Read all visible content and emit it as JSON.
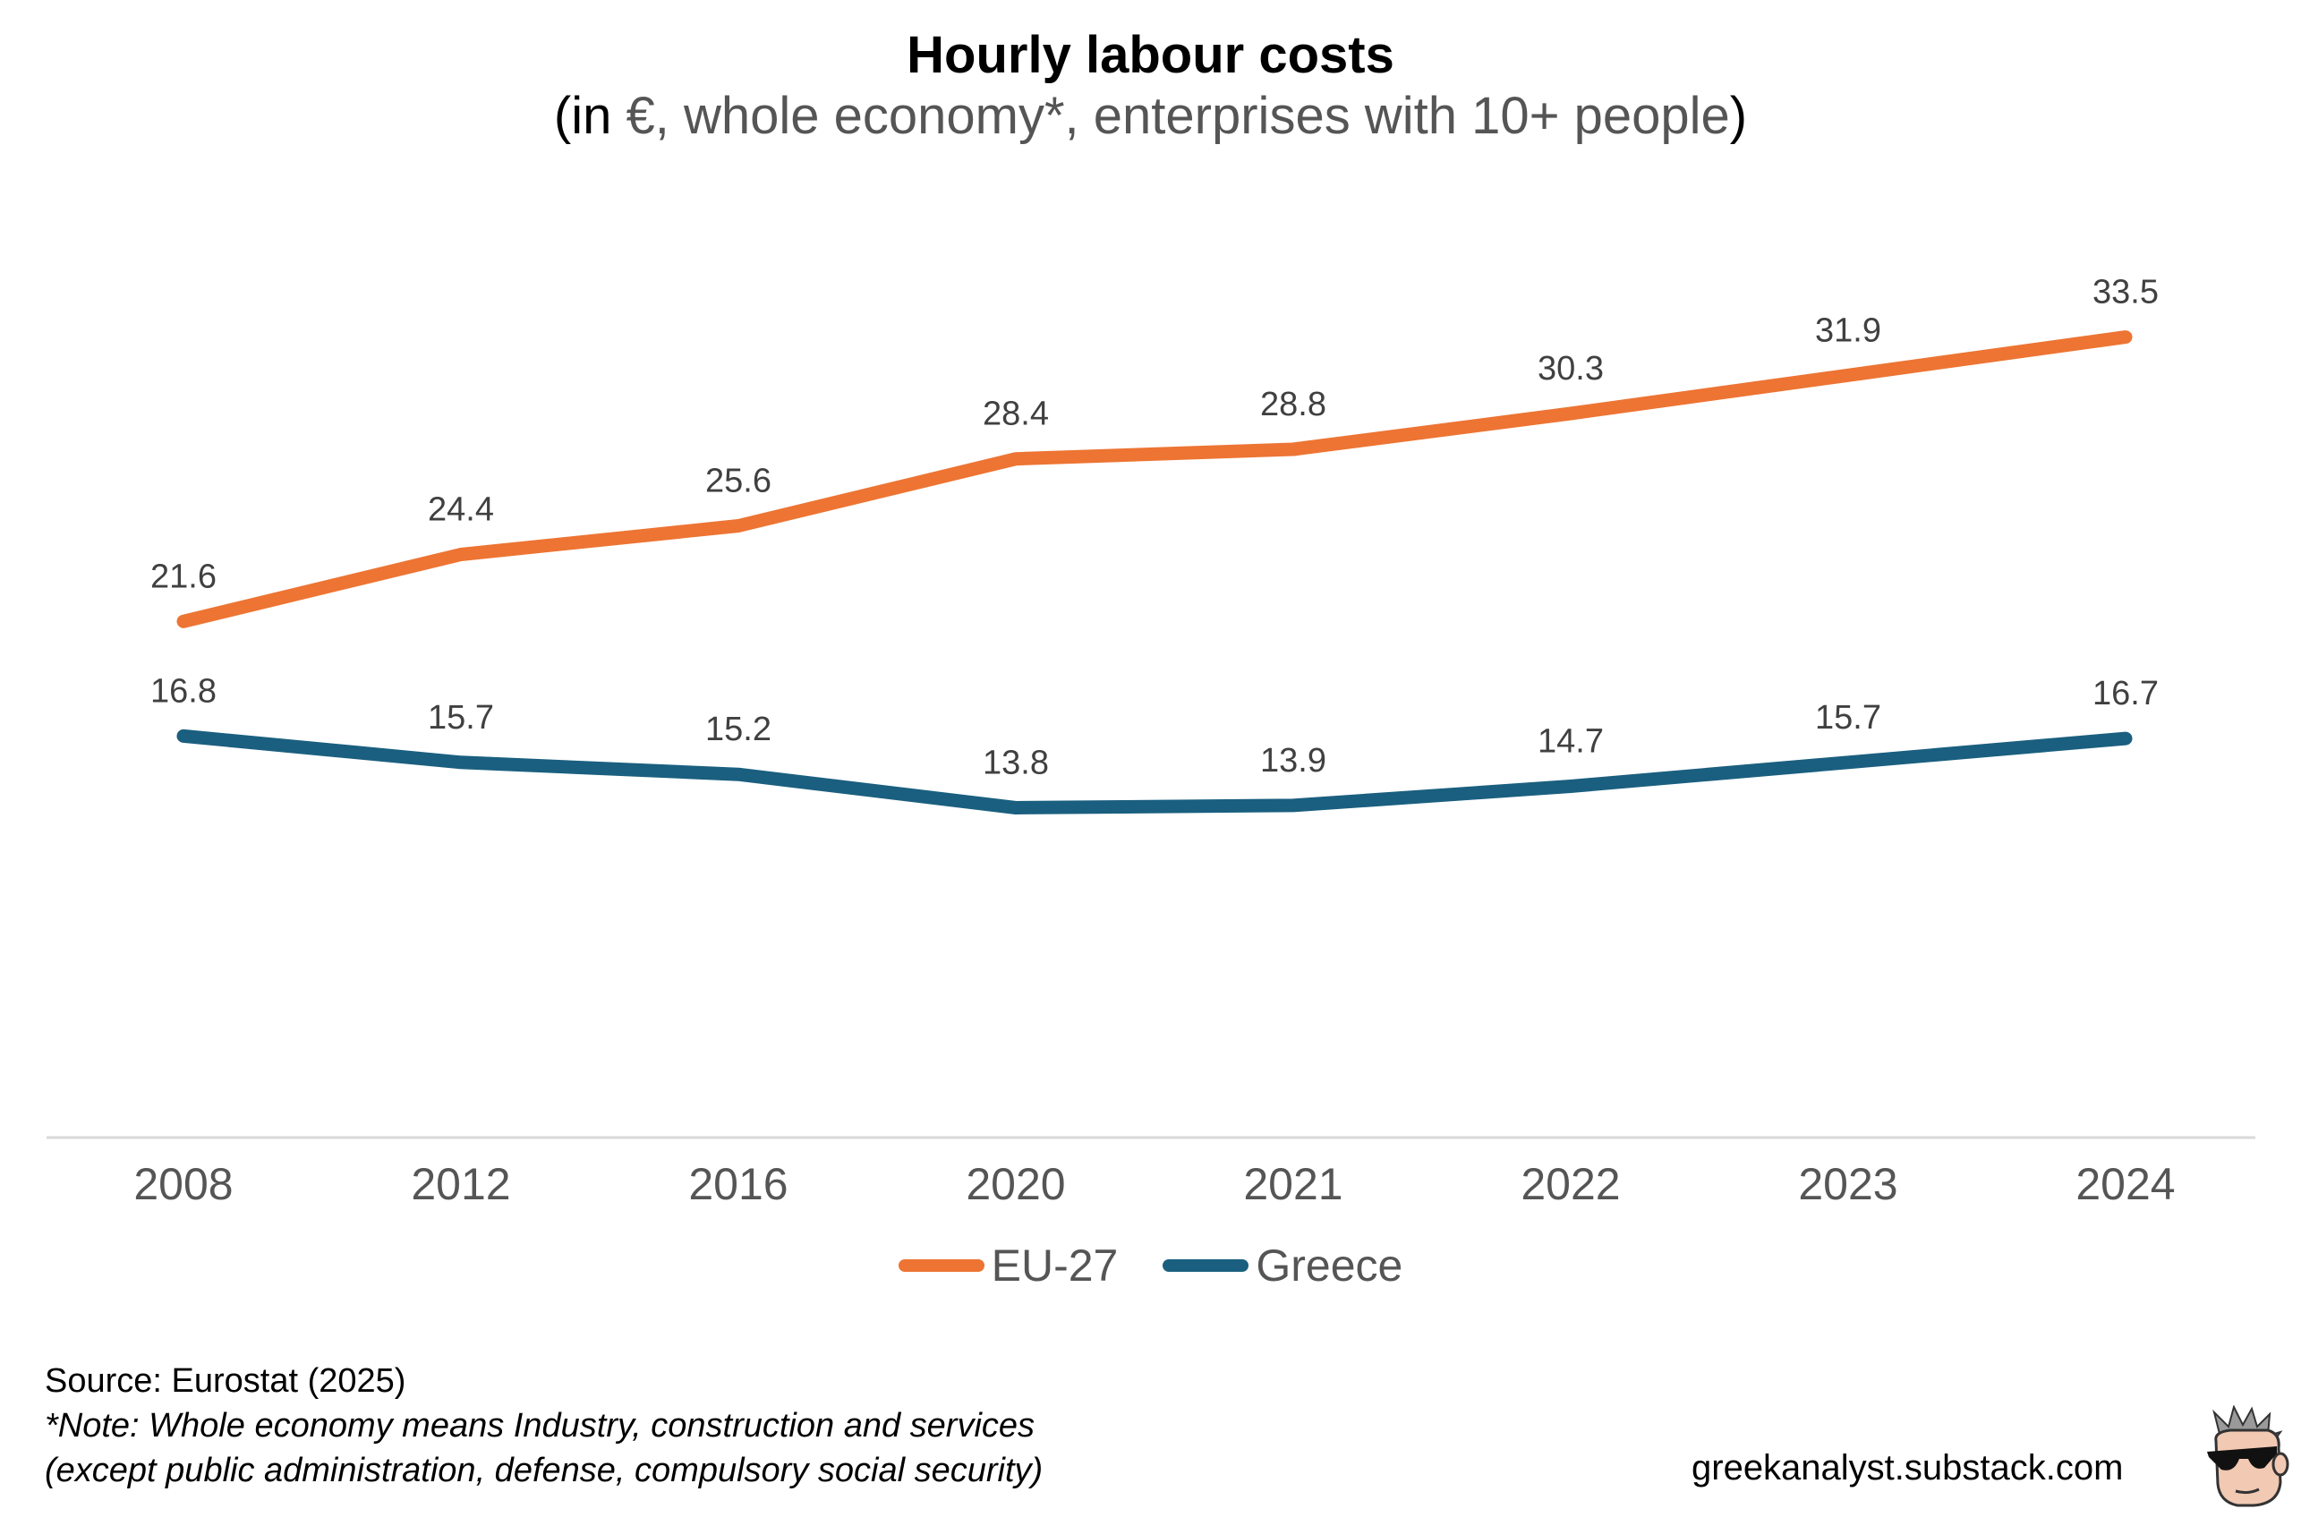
{
  "title": "Hourly labour costs",
  "subtitle": {
    "open": "(in ",
    "middle": "€, whole economy*, enterprises with 10+ people",
    "close": ")"
  },
  "colors": {
    "eu": "#ED7433",
    "greece": "#1A5F7F",
    "axis": "#D9D9D9",
    "tick_text": "#555555",
    "value_text": "#404040"
  },
  "chart_data": {
    "type": "line",
    "title": "Hourly labour costs",
    "subtitle": "(in €, whole economy*, enterprises with 10+ people)",
    "categories": [
      "2008",
      "2012",
      "2016",
      "2020",
      "2021",
      "2022",
      "2023",
      "2024"
    ],
    "series": [
      {
        "name": "EU-27",
        "values": [
          21.6,
          24.4,
          25.6,
          28.4,
          28.8,
          30.3,
          31.9,
          33.5
        ]
      },
      {
        "name": "Greece",
        "values": [
          16.8,
          15.7,
          15.2,
          13.8,
          13.9,
          14.7,
          15.7,
          16.7
        ]
      }
    ],
    "ylim": [
      0,
      36
    ],
    "grid": false,
    "legend": "bottom",
    "xlabel": "",
    "ylabel": ""
  },
  "source": "Source: Eurostat (2025)",
  "note_line1": "*Note: Whole economy means Industry, construction and services",
  "note_line2": "(except public administration, defense, compulsory social security)",
  "website": "greekanalyst.substack.com",
  "mascot_icon": "cartoon-face-sunglasses-icon"
}
